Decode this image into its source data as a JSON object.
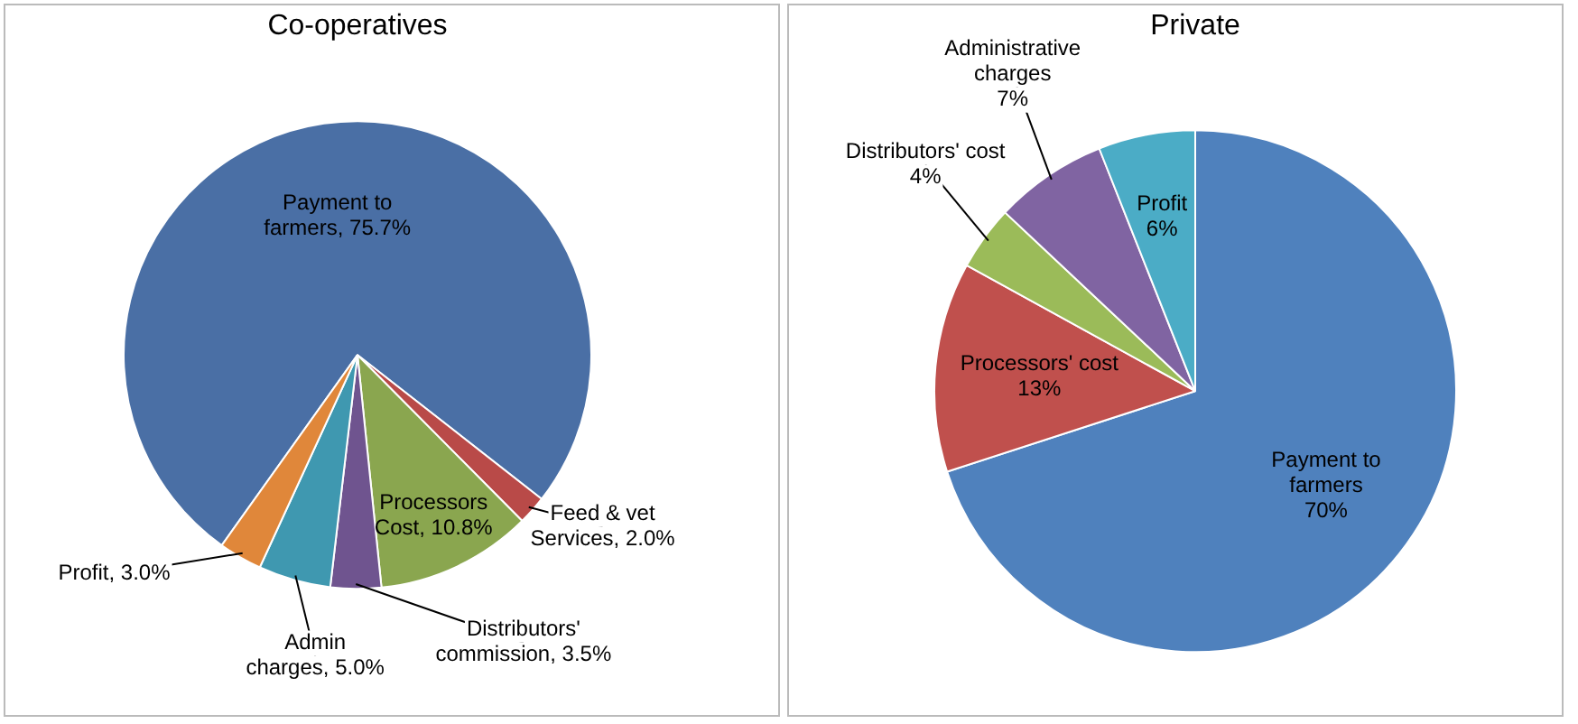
{
  "chart_data": [
    {
      "type": "pie",
      "title": "Co-operatives",
      "categories": [
        "Payment to farmers",
        "Feed & vet Services",
        "Processors Cost",
        "Distributors' commission",
        "Admin charges",
        "Profit"
      ],
      "values": [
        75.7,
        2.0,
        10.8,
        3.5,
        5.0,
        3.0
      ],
      "value_labels": [
        "75.7%",
        "2.0%",
        "10.8%",
        "3.5%",
        "5.0%",
        "3.0%"
      ],
      "colors": [
        "#4a6fa5",
        "#b94a48",
        "#8aa64f",
        "#6f548f",
        "#3f98b0",
        "#e0873a"
      ]
    },
    {
      "type": "pie",
      "title": "Private",
      "categories": [
        "Payment to farmers",
        "Processors' cost",
        "Distributors' cost",
        "Administrative charges",
        "Profit"
      ],
      "values": [
        70,
        13,
        4,
        7,
        6
      ],
      "value_labels": [
        "70%",
        "13%",
        "4%",
        "7%",
        "6%"
      ],
      "colors": [
        "#4f81bd",
        "#c0504d",
        "#9bbb59",
        "#8064a2",
        "#4bacc6"
      ]
    }
  ]
}
